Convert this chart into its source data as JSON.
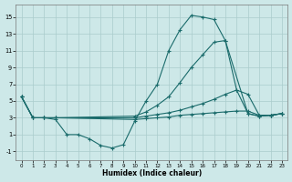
{
  "background_color": "#cde8e8",
  "grid_color": "#aacccc",
  "line_color": "#1a6b6b",
  "xlim": [
    -0.5,
    23.5
  ],
  "ylim": [
    -2.0,
    16.5
  ],
  "yticks": [
    -1,
    1,
    3,
    5,
    7,
    9,
    11,
    13,
    15
  ],
  "xticks": [
    0,
    1,
    2,
    3,
    4,
    5,
    6,
    7,
    8,
    9,
    10,
    11,
    12,
    13,
    14,
    15,
    16,
    17,
    18,
    19,
    20,
    21,
    22,
    23
  ],
  "xlabel": "Humidex (Indice chaleur)",
  "curve1_x": [
    0,
    1,
    2,
    3,
    4,
    5,
    6,
    7,
    8,
    9,
    10,
    11,
    12,
    13,
    14,
    15,
    16,
    17,
    18,
    19,
    20,
    21,
    22,
    23
  ],
  "curve1_y": [
    5.5,
    3.0,
    3.0,
    2.8,
    1.0,
    1.0,
    0.5,
    -0.3,
    -0.6,
    -0.2,
    2.6,
    5.0,
    7.0,
    11.0,
    13.5,
    15.2,
    15.0,
    14.7,
    12.2,
    6.3,
    3.5,
    3.2,
    3.3,
    3.5
  ],
  "curve2_x": [
    0,
    1,
    2,
    3,
    10,
    11,
    12,
    13,
    14,
    15,
    16,
    17,
    18,
    20,
    21,
    22,
    23
  ],
  "curve2_y": [
    5.5,
    3.0,
    3.0,
    3.0,
    3.2,
    3.7,
    4.5,
    5.5,
    7.2,
    9.0,
    10.5,
    12.0,
    12.2,
    3.5,
    3.2,
    3.3,
    3.5
  ],
  "curve3_x": [
    0,
    1,
    2,
    3,
    10,
    11,
    12,
    13,
    14,
    15,
    16,
    17,
    18,
    19,
    20,
    21,
    22,
    23
  ],
  "curve3_y": [
    5.5,
    3.0,
    3.0,
    3.0,
    3.0,
    3.2,
    3.4,
    3.6,
    3.9,
    4.3,
    4.7,
    5.2,
    5.8,
    6.3,
    5.8,
    3.3,
    3.3,
    3.5
  ],
  "curve4_x": [
    0,
    1,
    2,
    3,
    10,
    11,
    12,
    13,
    14,
    15,
    16,
    17,
    18,
    19,
    20,
    21,
    22,
    23
  ],
  "curve4_y": [
    5.5,
    3.0,
    3.0,
    3.0,
    2.8,
    2.9,
    3.0,
    3.1,
    3.3,
    3.4,
    3.5,
    3.6,
    3.7,
    3.8,
    3.8,
    3.3,
    3.3,
    3.5
  ]
}
